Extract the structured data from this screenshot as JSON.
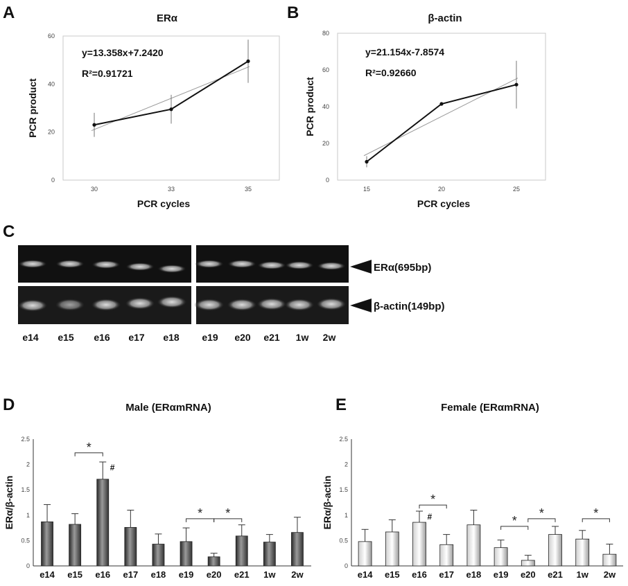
{
  "panels": {
    "A": "A",
    "B": "B",
    "C": "C",
    "D": "D",
    "E": "E"
  },
  "gel": {
    "bands": [
      {
        "label": "ERα(695bp)"
      },
      {
        "label": "β-actin(149bp)"
      }
    ],
    "lanes_left": [
      "e14",
      "e15",
      "e16",
      "e17",
      "e18"
    ],
    "lanes_right": [
      "e19",
      "e20",
      "e21",
      "1w",
      "2w"
    ]
  },
  "chart_data": [
    {
      "id": "A",
      "type": "line",
      "title": "ERα",
      "xlabel": "PCR cycles",
      "ylabel": "PCR product",
      "x": [
        30,
        33,
        35
      ],
      "xticks": [
        "30",
        "33",
        "35"
      ],
      "y": [
        23,
        29.5,
        49.5
      ],
      "err": [
        5,
        6,
        9
      ],
      "ylim": [
        0,
        60
      ],
      "yticks": [
        0,
        20,
        40,
        60
      ],
      "fit_line": {
        "y_start": 20.6,
        "y_end": 47.3
      },
      "equation": "y=13.358x+7.2420",
      "r2": "R²=0.91721"
    },
    {
      "id": "B",
      "type": "line",
      "title": "β-actin",
      "xlabel": "PCR cycles",
      "ylabel": "PCR product",
      "x": [
        15,
        20,
        25
      ],
      "xticks": [
        "15",
        "20",
        "25"
      ],
      "y": [
        10,
        41.5,
        52
      ],
      "err": [
        3,
        1,
        13
      ],
      "ylim": [
        0,
        80
      ],
      "yticks": [
        0,
        20,
        40,
        60,
        80
      ],
      "fit_line": {
        "y_start": 13.3,
        "y_end": 55.6
      },
      "equation": "y=21.154x-7.8574",
      "r2": "R²=0.92660"
    },
    {
      "id": "D",
      "type": "bar",
      "title": "Male (ERαmRNA)",
      "ylabel": "ERα/β-actin",
      "categories": [
        "e14",
        "e15",
        "e16",
        "e17",
        "e18",
        "e19",
        "e20",
        "e21",
        "1w",
        "2w"
      ],
      "values": [
        0.87,
        0.82,
        1.71,
        0.76,
        0.43,
        0.48,
        0.18,
        0.59,
        0.47,
        0.66
      ],
      "err": [
        0.34,
        0.21,
        0.34,
        0.34,
        0.2,
        0.27,
        0.07,
        0.22,
        0.15,
        0.3
      ],
      "ylim": [
        0,
        2.5
      ],
      "yticks": [
        "0",
        "0.5",
        "1",
        "1.5",
        "2",
        "2.5"
      ],
      "bar_fill": "dark",
      "hash_marks": [
        {
          "index": 2,
          "text": "#"
        }
      ],
      "significance": [
        {
          "from": 1,
          "to": 2,
          "y": 2.23,
          "text": "*"
        },
        {
          "from": 5,
          "to": 6,
          "y": 0.93,
          "text": "*"
        },
        {
          "from": 6,
          "to": 7,
          "y": 0.93,
          "text": "*"
        }
      ]
    },
    {
      "id": "E",
      "type": "bar",
      "title": "Female (ERαmRNA)",
      "ylabel": "ERα/β-actin",
      "categories": [
        "e14",
        "e15",
        "e16",
        "e17",
        "e18",
        "e19",
        "e20",
        "e21",
        "1w",
        "2w"
      ],
      "values": [
        0.48,
        0.67,
        0.86,
        0.42,
        0.81,
        0.36,
        0.11,
        0.62,
        0.53,
        0.23
      ],
      "err": [
        0.24,
        0.24,
        0.22,
        0.2,
        0.29,
        0.15,
        0.1,
        0.16,
        0.17,
        0.2
      ],
      "ylim": [
        0,
        2.5
      ],
      "yticks": [
        "0",
        "0.5",
        "1",
        "1.5",
        "2",
        "2.5"
      ],
      "bar_fill": "light",
      "hash_marks": [
        {
          "index": 2,
          "text": "#"
        }
      ],
      "significance": [
        {
          "from": 2,
          "to": 3,
          "y": 1.2,
          "text": "*"
        },
        {
          "from": 5,
          "to": 6,
          "y": 0.78,
          "text": "*"
        },
        {
          "from": 6,
          "to": 7,
          "y": 0.93,
          "text": "*"
        },
        {
          "from": 8,
          "to": 9,
          "y": 0.93,
          "text": "*"
        }
      ]
    }
  ]
}
